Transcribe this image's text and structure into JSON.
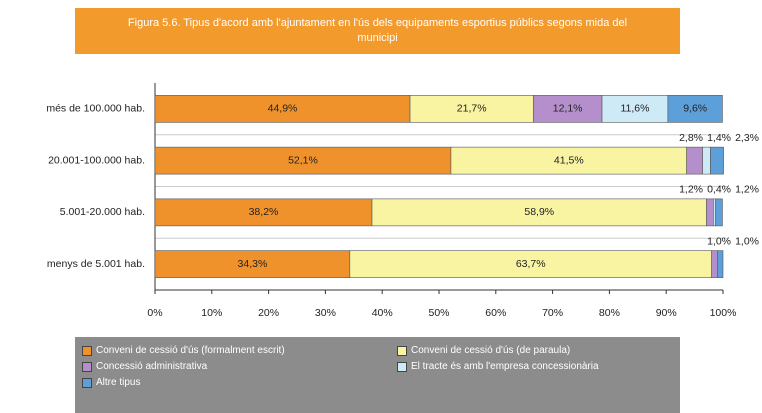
{
  "chart_data": {
    "type": "stacked-bar-horizontal",
    "title": "Figura 5.6. Tipus d'acord amb l'ajuntament en l'ús dels equipaments esportius públics segons mida del municipi",
    "categories": [
      "més de 100.000 hab.",
      "20.001-100.000 hab.",
      "5.001-20.000 hab.",
      "menys de 5.001 hab."
    ],
    "series": [
      {
        "name": "Conveni de cessió d'ús (formalment escrit)",
        "color": "#f0922b",
        "values": [
          44.9,
          52.1,
          38.2,
          34.3
        ],
        "value_labels": [
          "44,9%",
          "52,1%",
          "38,2%",
          "34,3%"
        ]
      },
      {
        "name": "Conveni de cessió d'ús (de paraula)",
        "color": "#f8f4a2",
        "values": [
          21.7,
          41.5,
          58.9,
          63.7
        ],
        "value_labels": [
          "21,7%",
          "41,5%",
          "58,9%",
          "63,7%"
        ]
      },
      {
        "name": "Concessió administrativa",
        "color": "#b48fcb",
        "values": [
          12.1,
          2.8,
          1.2,
          1.0
        ],
        "value_labels": [
          "12,1%",
          "2,8%",
          "1,2%",
          "1,0%"
        ]
      },
      {
        "name": "El tracte és amb l'empresa concessionària",
        "color": "#cdeaf6",
        "values": [
          11.6,
          1.4,
          0.4,
          0
        ],
        "value_labels": [
          "11,6%",
          "1,4%",
          "0,4%",
          null
        ]
      },
      {
        "name": "Altre tipus",
        "color": "#5d9fd8",
        "values": [
          9.6,
          2.3,
          1.2,
          1.0
        ],
        "value_labels": [
          "9,6%",
          "2,3%",
          "1,2%",
          "1,0%"
        ]
      }
    ],
    "xlim": [
      0,
      100
    ],
    "xticks": [
      {
        "value": 0,
        "label": "0%"
      },
      {
        "value": 10,
        "label": "10%"
      },
      {
        "value": 20,
        "label": "20%"
      },
      {
        "value": 30,
        "label": "30%"
      },
      {
        "value": 40,
        "label": "40%"
      },
      {
        "value": 50,
        "label": "50%"
      },
      {
        "value": 60,
        "label": "60%"
      },
      {
        "value": 70,
        "label": "70%"
      },
      {
        "value": 80,
        "label": "80%"
      },
      {
        "value": 90,
        "label": "90%"
      },
      {
        "value": 100,
        "label": "100%"
      }
    ]
  }
}
